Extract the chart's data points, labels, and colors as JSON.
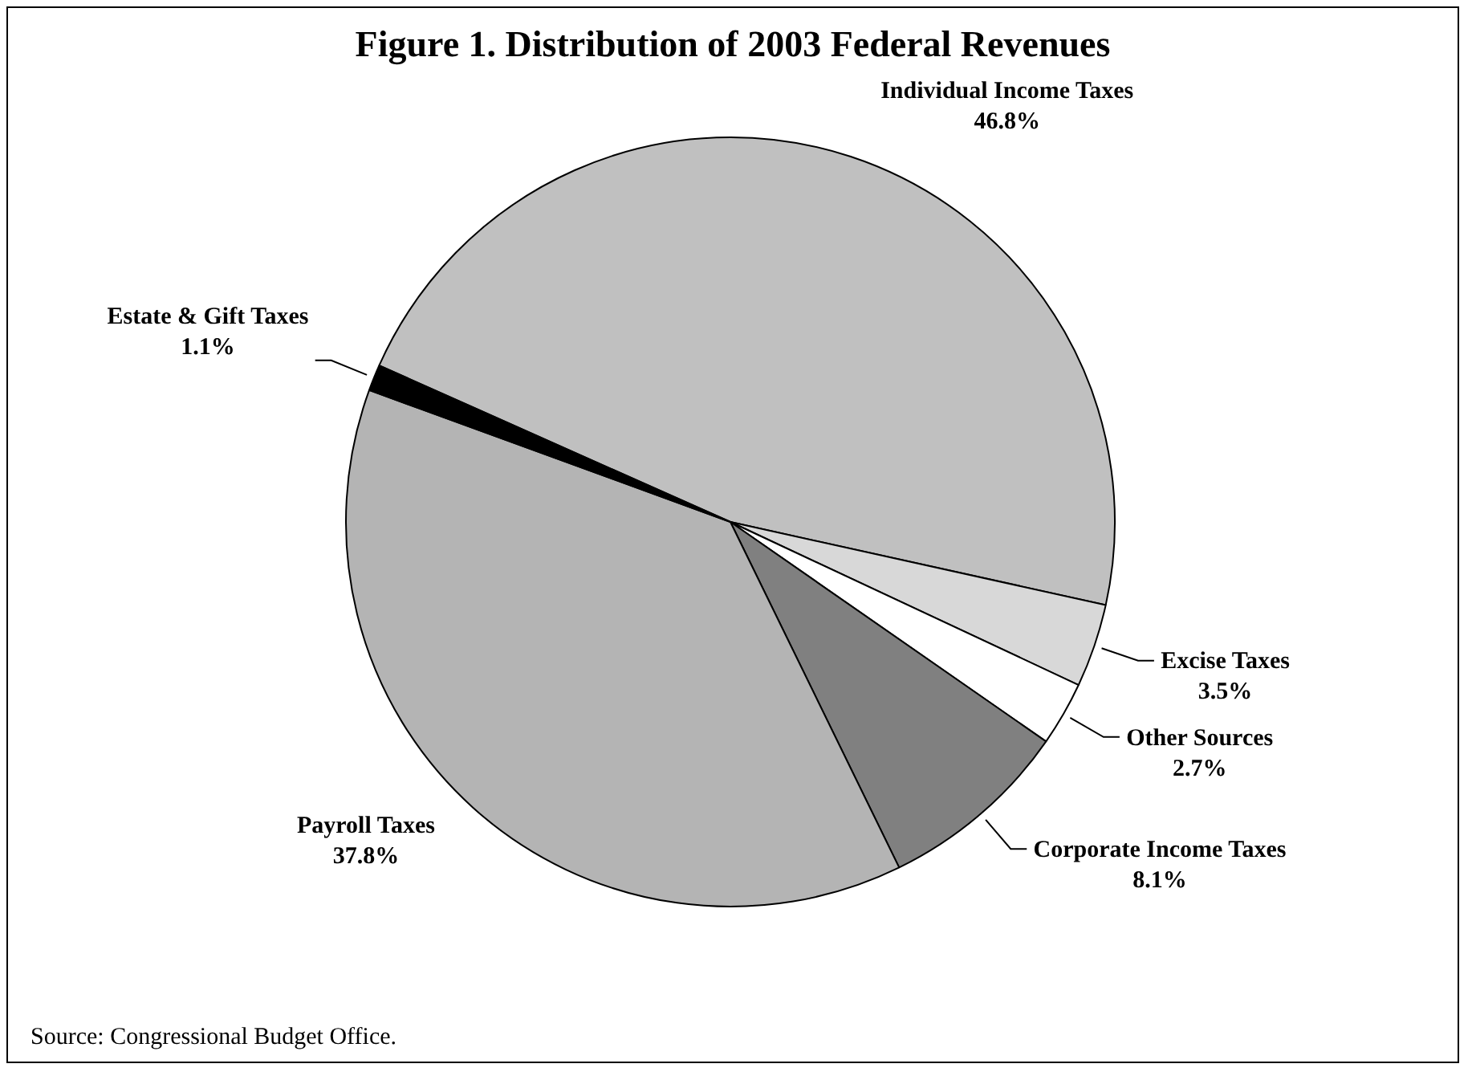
{
  "chart_data": {
    "type": "pie",
    "title": "Figure 1. Distribution of 2003 Federal Revenues",
    "categories": [
      "Individual Income Taxes",
      "Excise Taxes",
      "Other Sources",
      "Corporate Income Taxes",
      "Payroll Taxes",
      "Estate & Gift Taxes"
    ],
    "values": [
      46.8,
      3.5,
      2.7,
      8.1,
      37.8,
      1.1
    ],
    "colors": [
      "#c0c0c0",
      "#d8d8d8",
      "#ffffff",
      "#808080",
      "#b4b4b4",
      "#000000"
    ],
    "value_labels": [
      "46.8%",
      "3.5%",
      "2.7%",
      "8.1%",
      "37.8%",
      "1.1%"
    ],
    "annotations": [
      "Source: Congressional Budget Office."
    ]
  }
}
